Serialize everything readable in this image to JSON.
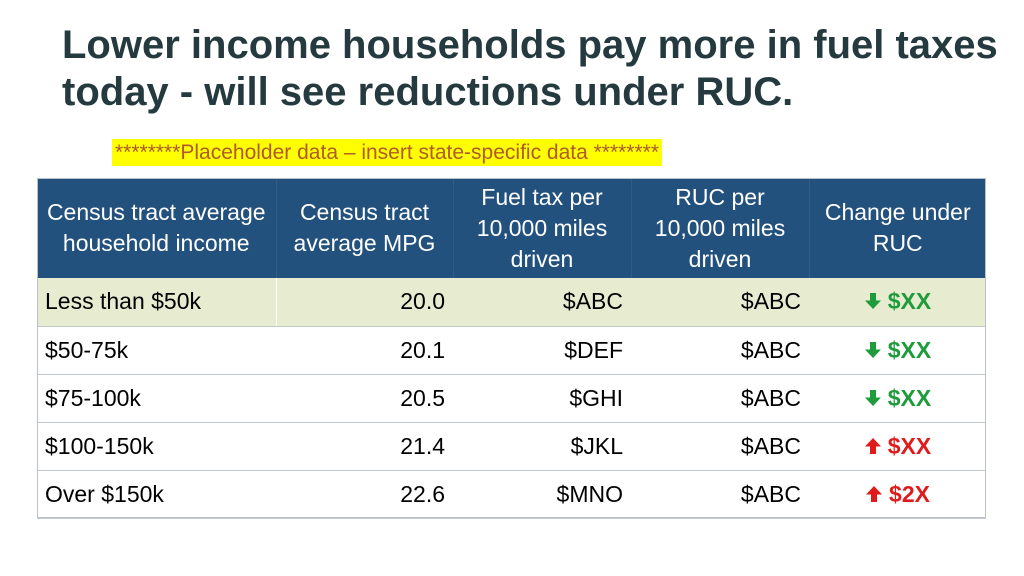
{
  "title": "Lower income households pay more in fuel taxes today - will see reductions under RUC.",
  "placeholder_note": "********Placeholder data – insert state-specific data ********",
  "colors": {
    "header_bg": "#23517e",
    "highlight_row": "#e7ecd1",
    "decrease": "#1e9b3a",
    "increase": "#e01b1b",
    "note_bg": "#ffff00"
  },
  "table": {
    "headers": [
      "Census tract average household income",
      "Census tract average MPG",
      "Fuel tax per 10,000 miles driven",
      "RUC per 10,000 miles driven",
      "Change under RUC"
    ],
    "rows": [
      {
        "income": "Less than $50k",
        "mpg": "20.0",
        "fuel_tax": "$ABC",
        "ruc": "$ABC",
        "change": "$XX",
        "direction": "down",
        "icon": "arrow-down-icon"
      },
      {
        "income": "$50-75k",
        "mpg": "20.1",
        "fuel_tax": "$DEF",
        "ruc": "$ABC",
        "change": "$XX",
        "direction": "down",
        "icon": "arrow-down-icon"
      },
      {
        "income": "$75-100k",
        "mpg": "20.5",
        "fuel_tax": "$GHI",
        "ruc": "$ABC",
        "change": "$XX",
        "direction": "down",
        "icon": "arrow-down-icon"
      },
      {
        "income": "$100-150k",
        "mpg": "21.4",
        "fuel_tax": "$JKL",
        "ruc": "$ABC",
        "change": "$XX",
        "direction": "up",
        "icon": "arrow-up-icon"
      },
      {
        "income": "Over $150k",
        "mpg": "22.6",
        "fuel_tax": "$MNO",
        "ruc": "$ABC",
        "change": "$2X",
        "direction": "up",
        "icon": "arrow-up-icon"
      }
    ]
  }
}
